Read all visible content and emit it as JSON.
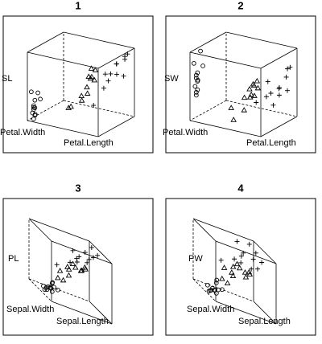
{
  "chart_data": [
    {
      "type": "scatter3d",
      "title": "1",
      "xlabel": "Petal.Length",
      "ylabel": "Petal.Width",
      "zlabel": "SL",
      "xlim": [
        1,
        6.9
      ],
      "ylim": [
        0.1,
        2.5
      ],
      "zlim": [
        4.3,
        7.9
      ],
      "color": "#000000",
      "series": [
        {
          "marker": "circle",
          "x": [
            1.4,
            1.4,
            1.3,
            1.5,
            1.4,
            1.7,
            1.4,
            1.5,
            1.4,
            1.5,
            1.2,
            1.5
          ],
          "y": [
            0.2,
            0.2,
            0.2,
            0.2,
            0.2,
            0.4,
            0.3,
            0.2,
            0.2,
            0.2,
            0.2,
            0.4
          ],
          "z": [
            5.1,
            4.9,
            4.7,
            4.6,
            5.0,
            5.4,
            4.6,
            5.0,
            4.4,
            5.4,
            5.8,
            5.7
          ]
        },
        {
          "marker": "triangle",
          "x": [
            4.7,
            4.5,
            4.9,
            4.0,
            4.6,
            4.5,
            4.7,
            3.3,
            4.6,
            3.9,
            3.5,
            4.2
          ],
          "y": [
            1.4,
            1.5,
            1.5,
            1.3,
            1.5,
            1.3,
            1.6,
            1.0,
            1.3,
            1.4,
            1.0,
            1.5
          ],
          "z": [
            7.0,
            6.4,
            6.9,
            5.5,
            6.5,
            5.7,
            6.3,
            4.9,
            6.6,
            5.2,
            5.0,
            5.9
          ]
        },
        {
          "marker": "plus",
          "x": [
            6.0,
            5.1,
            5.9,
            5.6,
            5.8,
            6.6,
            4.5,
            6.3,
            5.8,
            6.1,
            5.1,
            6.7
          ],
          "y": [
            2.5,
            1.9,
            2.1,
            1.8,
            2.2,
            2.1,
            1.7,
            1.8,
            1.8,
            2.5,
            2.0,
            2.2
          ],
          "z": [
            6.3,
            5.8,
            7.1,
            6.3,
            6.5,
            7.6,
            4.9,
            7.3,
            6.7,
            7.2,
            6.5,
            7.7
          ]
        }
      ]
    },
    {
      "type": "scatter3d",
      "title": "2",
      "xlabel": "Petal.Length",
      "ylabel": "Petal.Width",
      "zlabel": "SW",
      "xlim": [
        1,
        6.9
      ],
      "ylim": [
        0.1,
        2.5
      ],
      "zlim": [
        2,
        4.4
      ],
      "color": "#000000",
      "series": [
        {
          "marker": "circle",
          "x": [
            1.4,
            1.4,
            1.3,
            1.5,
            1.4,
            1.7,
            1.4,
            1.5,
            1.4,
            1.5,
            1.2,
            1.5
          ],
          "y": [
            0.2,
            0.2,
            0.2,
            0.2,
            0.2,
            0.4,
            0.3,
            0.2,
            0.2,
            0.2,
            0.2,
            0.4
          ],
          "z": [
            3.5,
            3.0,
            3.2,
            3.1,
            3.6,
            3.9,
            3.4,
            3.4,
            2.9,
            3.7,
            4.0,
            4.4
          ]
        },
        {
          "marker": "triangle",
          "x": [
            4.7,
            4.5,
            4.9,
            4.0,
            4.6,
            4.5,
            4.7,
            3.3,
            4.6,
            3.9,
            3.5,
            4.2
          ],
          "y": [
            1.4,
            1.5,
            1.5,
            1.3,
            1.5,
            1.3,
            1.6,
            1.0,
            1.3,
            1.4,
            1.0,
            1.5
          ],
          "z": [
            3.2,
            3.2,
            3.1,
            2.3,
            2.8,
            2.8,
            3.3,
            2.4,
            2.9,
            2.7,
            2.0,
            3.0
          ]
        },
        {
          "marker": "plus",
          "x": [
            6.0,
            5.1,
            5.9,
            5.6,
            5.8,
            6.6,
            4.5,
            6.3,
            5.8,
            6.1,
            5.1,
            6.7
          ],
          "y": [
            2.5,
            1.9,
            2.1,
            1.8,
            2.2,
            2.1,
            1.7,
            1.8,
            1.8,
            2.5,
            2.0,
            2.2
          ],
          "z": [
            3.3,
            2.7,
            3.0,
            2.9,
            3.0,
            3.0,
            2.5,
            2.9,
            2.5,
            3.6,
            3.2,
            3.8
          ]
        }
      ]
    },
    {
      "type": "scatter3d",
      "title": "3",
      "xlabel": "Sepal.Length",
      "ylabel": "Sepal.Width",
      "zlabel": "PL",
      "xlim": [
        4.3,
        7.9
      ],
      "ylim": [
        2,
        4.4
      ],
      "zlim": [
        1,
        6.9
      ],
      "color": "#000000",
      "series": [
        {
          "marker": "circle",
          "x": [
            5.1,
            4.9,
            4.7,
            4.6,
            5.0,
            5.4,
            4.6,
            5.0,
            4.4,
            5.4,
            5.8,
            5.7
          ],
          "y": [
            3.5,
            3.0,
            3.2,
            3.1,
            3.6,
            3.9,
            3.4,
            3.4,
            2.9,
            3.7,
            4.0,
            4.4
          ],
          "z": [
            1.4,
            1.4,
            1.3,
            1.5,
            1.4,
            1.7,
            1.4,
            1.5,
            1.4,
            1.5,
            1.2,
            1.5
          ]
        },
        {
          "marker": "triangle",
          "x": [
            7.0,
            6.4,
            6.9,
            5.5,
            6.5,
            5.7,
            6.3,
            4.9,
            6.6,
            5.2,
            5.0,
            5.9
          ],
          "y": [
            3.2,
            3.2,
            3.1,
            2.3,
            2.8,
            2.8,
            3.3,
            2.4,
            2.9,
            2.7,
            2.0,
            3.0
          ],
          "z": [
            4.7,
            4.5,
            4.9,
            4.0,
            4.6,
            4.5,
            4.7,
            3.3,
            4.6,
            3.9,
            3.5,
            4.2
          ]
        },
        {
          "marker": "plus",
          "x": [
            6.3,
            5.8,
            7.1,
            6.3,
            6.5,
            7.6,
            4.9,
            7.3,
            6.7,
            7.2,
            6.5,
            7.7
          ],
          "y": [
            3.3,
            2.7,
            3.0,
            2.9,
            3.0,
            3.0,
            2.5,
            2.9,
            2.5,
            3.6,
            3.2,
            3.8
          ],
          "z": [
            6.0,
            5.1,
            5.9,
            5.6,
            5.8,
            6.6,
            4.5,
            6.3,
            5.8,
            6.1,
            5.1,
            6.7
          ]
        }
      ]
    },
    {
      "type": "scatter3d",
      "title": "4",
      "xlabel": "Sepal.Length",
      "ylabel": "Sepal.Width",
      "zlabel": "PW",
      "xlim": [
        4.3,
        7.9
      ],
      "ylim": [
        2,
        4.4
      ],
      "zlim": [
        0.1,
        2.5
      ],
      "color": "#000000",
      "series": [
        {
          "marker": "circle",
          "x": [
            5.1,
            4.9,
            4.7,
            4.6,
            5.0,
            5.4,
            4.6,
            5.0,
            4.4,
            5.4,
            5.8,
            5.7
          ],
          "y": [
            3.5,
            3.0,
            3.2,
            3.1,
            3.6,
            3.9,
            3.4,
            3.4,
            2.9,
            3.7,
            4.0,
            4.4
          ],
          "z": [
            0.2,
            0.2,
            0.2,
            0.2,
            0.2,
            0.4,
            0.3,
            0.2,
            0.2,
            0.2,
            0.2,
            0.4
          ]
        },
        {
          "marker": "triangle",
          "x": [
            7.0,
            6.4,
            6.9,
            5.5,
            6.5,
            5.7,
            6.3,
            4.9,
            6.6,
            5.2,
            5.0,
            5.9
          ],
          "y": [
            3.2,
            3.2,
            3.1,
            2.3,
            2.8,
            2.8,
            3.3,
            2.4,
            2.9,
            2.7,
            2.0,
            3.0
          ],
          "z": [
            1.4,
            1.5,
            1.5,
            1.3,
            1.5,
            1.3,
            1.6,
            1.0,
            1.3,
            1.4,
            1.0,
            1.5
          ]
        },
        {
          "marker": "plus",
          "x": [
            6.3,
            5.8,
            7.1,
            6.3,
            6.5,
            7.6,
            4.9,
            7.3,
            6.7,
            7.2,
            6.5,
            7.7
          ],
          "y": [
            3.3,
            2.7,
            3.0,
            2.9,
            3.0,
            3.0,
            2.5,
            2.9,
            2.5,
            3.6,
            3.2,
            3.8
          ],
          "z": [
            2.5,
            1.9,
            2.1,
            1.8,
            2.2,
            2.1,
            1.7,
            1.8,
            1.8,
            2.5,
            2.0,
            2.2
          ]
        }
      ]
    }
  ]
}
